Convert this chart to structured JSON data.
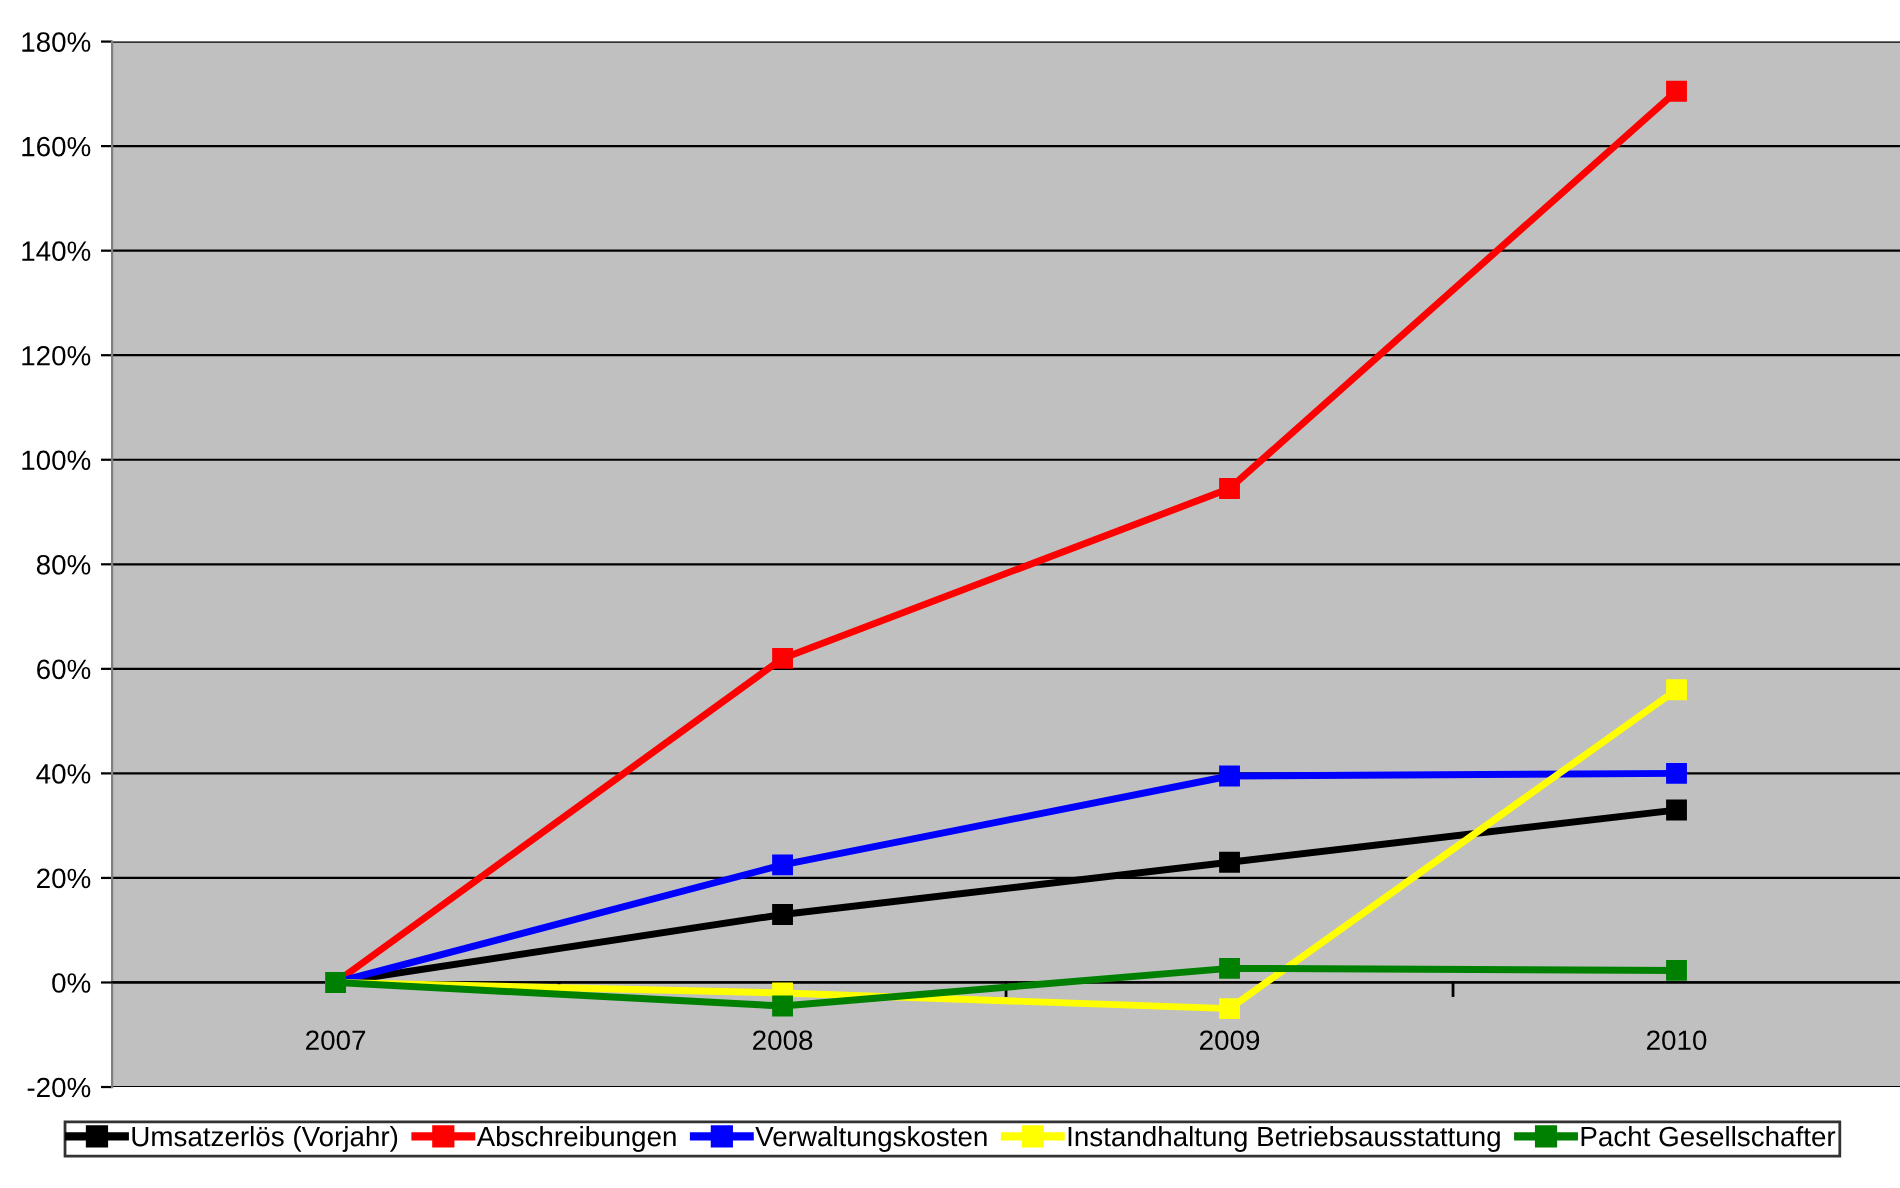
{
  "chart_data": {
    "type": "line",
    "categories": [
      "2007",
      "2008",
      "2009",
      "2010"
    ],
    "series": [
      {
        "name": "Umsatzerlös (Vorjahr)",
        "color": "#000000",
        "values": [
          0,
          13,
          23,
          33
        ]
      },
      {
        "name": "Abschreibungen",
        "color": "#ff0000",
        "values": [
          0,
          62,
          94.5,
          170.5
        ]
      },
      {
        "name": "Verwaltungskosten",
        "color": "#0000ff",
        "values": [
          0,
          22.5,
          39.5,
          40
        ]
      },
      {
        "name": "Instandhaltung Betriebsausstattung",
        "color": "#ffff00",
        "values": [
          0,
          -2,
          -5,
          56
        ]
      },
      {
        "name": "Pacht Gesellschafter",
        "color": "#008000",
        "values": [
          0,
          -4.5,
          2.7,
          2.3
        ]
      }
    ],
    "ylim": [
      -20,
      180
    ],
    "yticks": [
      {
        "value": -20,
        "label": "-20%"
      },
      {
        "value": 0,
        "label": "0%"
      },
      {
        "value": 20,
        "label": "20%"
      },
      {
        "value": 40,
        "label": "40%"
      },
      {
        "value": 60,
        "label": "60%"
      },
      {
        "value": 80,
        "label": "80%"
      },
      {
        "value": 100,
        "label": "100%"
      },
      {
        "value": 120,
        "label": "120%"
      },
      {
        "value": 140,
        "label": "140%"
      },
      {
        "value": 160,
        "label": "160%"
      },
      {
        "value": 180,
        "label": "180%"
      }
    ],
    "grid": "y",
    "legend": "bottom",
    "marker": "square",
    "line_style": "solid"
  }
}
